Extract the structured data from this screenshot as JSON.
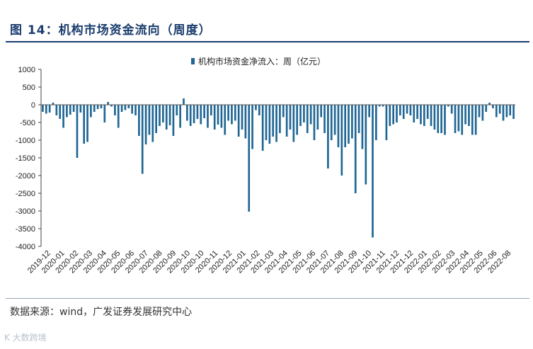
{
  "title": "图 14：机构市场资金流向（周度）",
  "source": "数据来源：wind，广发证券发展研究中心",
  "watermark": "K 大数跨境",
  "colors": {
    "bar": "#1f6694",
    "title": "#1a3d6d"
  },
  "chart_data": {
    "type": "bar",
    "title": "",
    "series_name": "机构市场资金净流入：周（亿元）",
    "xlabel": "",
    "ylabel": "",
    "ylim": [
      -4000,
      1000
    ],
    "yticks": [
      1000,
      500,
      0,
      -500,
      -1000,
      -1500,
      -2000,
      -2500,
      -3000,
      -3500,
      -4000
    ],
    "x_tick_labels": [
      "2019-12",
      "2020-01",
      "2020-02",
      "2020-03",
      "2020-04",
      "2020-05",
      "2020-06",
      "2020-07",
      "2020-08",
      "2020-09",
      "2020-10",
      "2020-10",
      "2020-11",
      "2020-12",
      "2021-01",
      "2021-02",
      "2021-03",
      "2021-04",
      "2021-05",
      "2021-06",
      "2021-07",
      "2021-08",
      "2021-09",
      "2021-10",
      "2021-11",
      "2021-12",
      "2021-12",
      "2022-01",
      "2022-02",
      "2022-03",
      "2022-04",
      "2022-05",
      "2022-06",
      "2022-08"
    ],
    "values": [
      -200,
      -250,
      -220,
      60,
      -300,
      -400,
      -650,
      -350,
      -280,
      -200,
      -1500,
      -220,
      -1100,
      -1050,
      -350,
      -200,
      -120,
      -100,
      -500,
      80,
      -50,
      -300,
      -650,
      -200,
      -150,
      -100,
      -250,
      -300,
      -880,
      -1950,
      -1120,
      -850,
      -1050,
      -800,
      -600,
      -500,
      -700,
      -580,
      -880,
      -300,
      -650,
      180,
      -450,
      -600,
      -520,
      -400,
      -550,
      -380,
      -650,
      -300,
      -700,
      -560,
      -650,
      -850,
      -450,
      -550,
      -450,
      -900,
      -700,
      -950,
      -3020,
      -1250,
      -150,
      -300,
      -1300,
      -1000,
      -1100,
      -900,
      -1050,
      -800,
      -350,
      -900,
      -700,
      -1050,
      -850,
      -600,
      -500,
      -800,
      -550,
      -1000,
      -700,
      -350,
      -800,
      -1800,
      -1000,
      -850,
      -1200,
      -2000,
      -1200,
      -1100,
      -950,
      -2500,
      -800,
      -1250,
      -2250,
      -350,
      -3750,
      -1000,
      -50,
      -50,
      -1000,
      -600,
      -550,
      -500,
      -300,
      -400,
      -250,
      -300,
      -500,
      -400,
      -550,
      -600,
      -400,
      -600,
      -700,
      -800,
      -800,
      -850,
      -50,
      -250,
      -800,
      -750,
      -850,
      -550,
      -600,
      -850,
      -850,
      -350,
      -450,
      -200,
      60,
      -100,
      -350,
      -250,
      -450,
      -350,
      -300,
      -400
    ]
  }
}
